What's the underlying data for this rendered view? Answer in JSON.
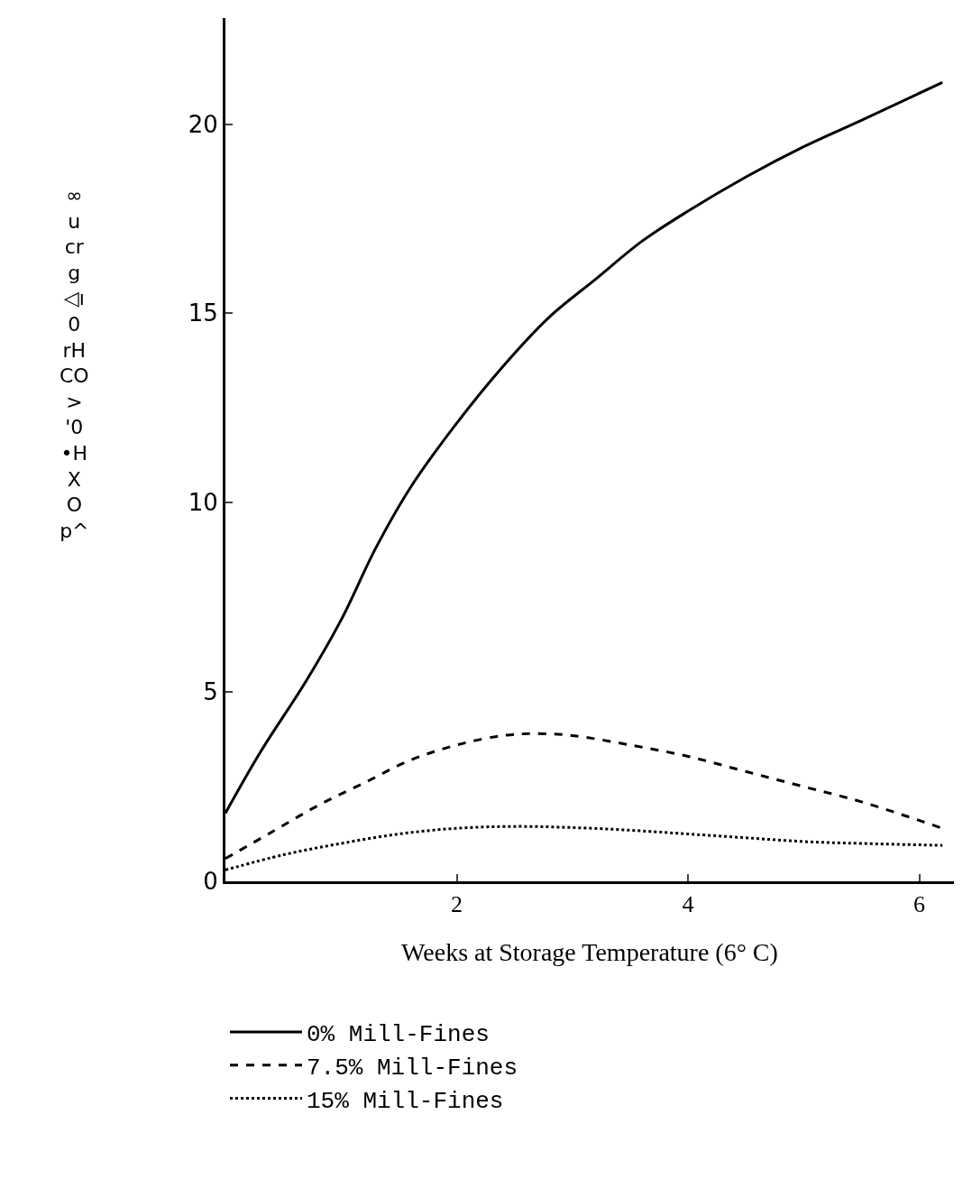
{
  "chart_data": {
    "type": "line",
    "xlabel": "Weeks at Storage Temperature (6° C)",
    "ylabel": "∞ u cr g ◁ı 0 rH CO > '0 •H X O p^",
    "xlim": [
      0,
      6.3
    ],
    "xticks": [
      2,
      4,
      6
    ],
    "ylim": [
      0,
      22.8
    ],
    "yticks": [
      0,
      5,
      10,
      15,
      20
    ],
    "legend": "bottom",
    "series": [
      {
        "name": "0% Mill-Fines",
        "color": "#000000",
        "line_style": "solid",
        "x": [
          0,
          0.3,
          0.7,
          1.0,
          1.3,
          1.6,
          2.0,
          2.4,
          2.8,
          3.2,
          3.6,
          4.0,
          4.5,
          5.0,
          5.5,
          6.2
        ],
        "values": [
          1.8,
          3.4,
          5.3,
          6.9,
          8.8,
          10.4,
          12.1,
          13.6,
          14.9,
          15.9,
          16.9,
          17.7,
          18.6,
          19.4,
          20.1,
          21.1
        ]
      },
      {
        "name": "7.5% Mill-Fines",
        "color": "#000000",
        "line_style": "dashed",
        "x": [
          0,
          0.4,
          0.8,
          1.2,
          1.6,
          2.0,
          2.4,
          2.7,
          3.0,
          3.5,
          4.0,
          4.5,
          5.0,
          5.5,
          6.2
        ],
        "values": [
          0.6,
          1.3,
          2.0,
          2.6,
          3.2,
          3.6,
          3.85,
          3.9,
          3.85,
          3.6,
          3.3,
          2.9,
          2.5,
          2.1,
          1.4
        ]
      },
      {
        "name": "15% Mill-Fines",
        "color": "#000000",
        "line_style": "dotted",
        "x": [
          0,
          0.5,
          1.0,
          1.5,
          2.0,
          2.5,
          3.0,
          3.5,
          4.0,
          4.5,
          5.0,
          5.5,
          6.2
        ],
        "values": [
          0.3,
          0.7,
          1.0,
          1.25,
          1.4,
          1.45,
          1.42,
          1.35,
          1.25,
          1.15,
          1.05,
          1.0,
          0.95
        ]
      }
    ]
  }
}
